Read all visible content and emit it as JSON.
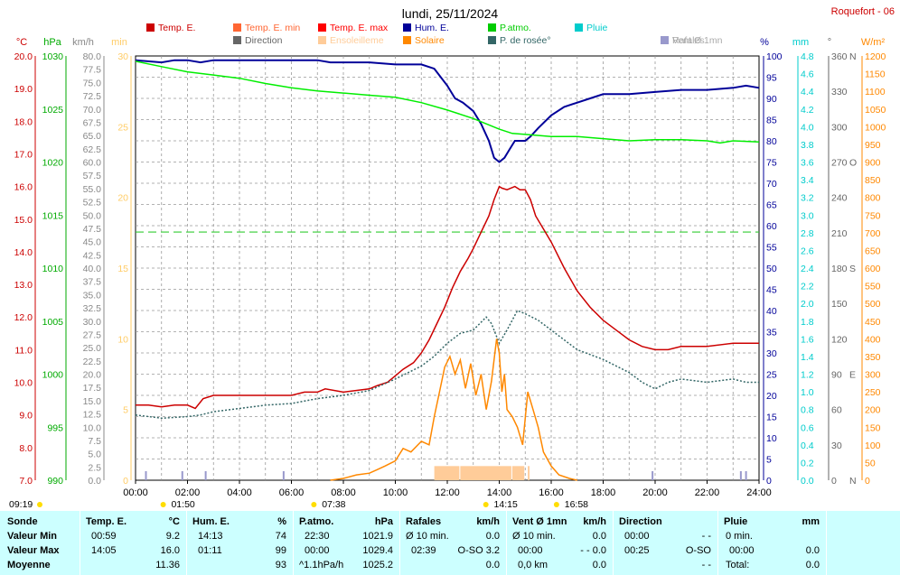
{
  "header": {
    "date": "lundi, 25/11/2024",
    "station": "Roquefort - 06"
  },
  "colors": {
    "temp": "#cc0000",
    "temp_min": "#ff6633",
    "temp_max": "#ff0000",
    "hum": "#000099",
    "patmo": "#00ee00",
    "pluie": "#00cccc",
    "vent": "#999999",
    "direction": "#666666",
    "ensoleillement": "#ffcc99",
    "solaire": "#ff8800",
    "rosee": "#336666",
    "rafales": "#9999cc",
    "grid": "#999999",
    "table_bg": "#ccffff"
  },
  "legend": [
    {
      "label": "Temp. E.",
      "color": "#cc0000"
    },
    {
      "label": "Temp. E. min",
      "color": "#ff6633"
    },
    {
      "label": "Temp. E. max",
      "color": "#ff0000"
    },
    {
      "label": "Hum. E.",
      "color": "#000099"
    },
    {
      "label": "P.atmo.",
      "color": "#00cc00"
    },
    {
      "label": "Pluie",
      "color": "#00cccc"
    },
    {
      "label": "Vent Ø 1mn",
      "color": "#aaaaaa"
    },
    {
      "label": "Direction",
      "color": "#666666"
    },
    {
      "label": "Ensoleilleme",
      "color": "#ffcc99"
    },
    {
      "label": "Solaire",
      "color": "#ff8800"
    },
    {
      "label": "P. de rosée°",
      "color": "#336666"
    },
    {
      "label": "Rafales",
      "color": "#9999cc"
    }
  ],
  "chart_data": {
    "type": "line",
    "x_unit": "hours",
    "x_range": [
      0,
      24
    ],
    "x_ticks": [
      "00:00",
      "02:00",
      "04:00",
      "06:00",
      "08:00",
      "10:00",
      "12:00",
      "14:00",
      "16:00",
      "18:00",
      "20:00",
      "22:00",
      "24:00"
    ],
    "axes": [
      {
        "unit": "°C",
        "color": "#cc0000",
        "range": [
          7,
          20
        ],
        "ticks": [
          "7.0",
          "8.0",
          "9.0",
          "10.0",
          "11.0",
          "12.0",
          "13.0",
          "14.0",
          "15.0",
          "16.0",
          "17.0",
          "18.0",
          "19.0",
          "20.0"
        ]
      },
      {
        "unit": "hPa",
        "color": "#00aa00",
        "range": [
          990,
          1030
        ],
        "ticks": [
          "990",
          "995",
          "1000",
          "1005",
          "1010",
          "1015",
          "1020",
          "1025",
          "1030"
        ]
      },
      {
        "unit": "km/h",
        "color": "#888888",
        "range": [
          0,
          80
        ],
        "ticks": [
          "0.0",
          "2.5",
          "5.0",
          "7.5",
          "10.0",
          "12.5",
          "15.0",
          "17.5",
          "20.0",
          "22.5",
          "25.0",
          "27.5",
          "30.0",
          "32.5",
          "35.0",
          "37.5",
          "40.0",
          "42.5",
          "45.0",
          "47.5",
          "50.0",
          "52.5",
          "55.0",
          "57.5",
          "60.0",
          "62.5",
          "65.0",
          "67.5",
          "70.0",
          "72.5",
          "75.0",
          "77.5",
          "80.0"
        ]
      },
      {
        "unit": "min",
        "color": "#ffcc66",
        "range": [
          0,
          30
        ],
        "ticks": [
          "0",
          "5",
          "10",
          "15",
          "20",
          "25",
          "30"
        ]
      },
      {
        "unit": "%",
        "color": "#000099",
        "range": [
          0,
          100
        ],
        "ticks": [
          "0",
          "5",
          "10",
          "15",
          "20",
          "25",
          "30",
          "35",
          "40",
          "45",
          "50",
          "55",
          "60",
          "65",
          "70",
          "75",
          "80",
          "85",
          "90",
          "95",
          "100"
        ]
      },
      {
        "unit": "mm",
        "color": "#00cccc",
        "range": [
          0,
          4.8
        ],
        "ticks": [
          "0.0",
          "0.2",
          "0.4",
          "0.6",
          "0.8",
          "1.0",
          "1.2",
          "1.4",
          "1.6",
          "1.8",
          "2.0",
          "2.2",
          "2.4",
          "2.6",
          "2.8",
          "3.0",
          "3.2",
          "3.4",
          "3.6",
          "3.8",
          "4.0",
          "4.2",
          "4.4",
          "4.6",
          "4.8"
        ]
      },
      {
        "unit": "°",
        "color": "#666666",
        "range": [
          0,
          360
        ],
        "ticks": [
          "0",
          "30",
          "60",
          "90",
          "120",
          "150",
          "180",
          "210",
          "240",
          "270",
          "300",
          "330",
          "360"
        ],
        "cardinals": [
          {
            "v": 0,
            "t": "N"
          },
          {
            "v": 90,
            "t": "E"
          },
          {
            "v": 180,
            "t": "S"
          },
          {
            "v": 270,
            "t": "O"
          },
          {
            "v": 360,
            "t": "N"
          }
        ]
      },
      {
        "unit": "W/m²",
        "color": "#ff8800",
        "range": [
          0,
          1200
        ],
        "ticks": [
          "0",
          "50",
          "100",
          "150",
          "200",
          "250",
          "300",
          "350",
          "400",
          "450",
          "500",
          "550",
          "600",
          "650",
          "700",
          "750",
          "800",
          "850",
          "900",
          "950",
          "1000",
          "1050",
          "1100",
          "1150",
          "1200"
        ]
      }
    ],
    "series": [
      {
        "name": "Temp. E.",
        "axis": "°C",
        "points": [
          [
            0,
            9.3
          ],
          [
            0.5,
            9.3
          ],
          [
            1,
            9.25
          ],
          [
            1.5,
            9.3
          ],
          [
            2,
            9.3
          ],
          [
            2.3,
            9.2
          ],
          [
            2.6,
            9.5
          ],
          [
            3,
            9.6
          ],
          [
            4,
            9.6
          ],
          [
            5,
            9.6
          ],
          [
            6,
            9.6
          ],
          [
            6.5,
            9.7
          ],
          [
            7,
            9.7
          ],
          [
            7.3,
            9.8
          ],
          [
            8,
            9.7
          ],
          [
            9,
            9.8
          ],
          [
            9.3,
            9.9
          ],
          [
            9.7,
            10.0
          ],
          [
            10,
            10.2
          ],
          [
            10.3,
            10.4
          ],
          [
            10.7,
            10.6
          ],
          [
            11,
            10.9
          ],
          [
            11.3,
            11.3
          ],
          [
            11.6,
            11.8
          ],
          [
            11.9,
            12.3
          ],
          [
            12.2,
            12.9
          ],
          [
            12.5,
            13.4
          ],
          [
            12.8,
            13.8
          ],
          [
            13,
            14.1
          ],
          [
            13.3,
            14.6
          ],
          [
            13.6,
            15.1
          ],
          [
            13.8,
            15.6
          ],
          [
            14,
            16.0
          ],
          [
            14.1,
            15.95
          ],
          [
            14.3,
            15.9
          ],
          [
            14.6,
            16.0
          ],
          [
            14.8,
            15.9
          ],
          [
            15,
            15.9
          ],
          [
            15.2,
            15.6
          ],
          [
            15.4,
            15.1
          ],
          [
            15.7,
            14.7
          ],
          [
            16,
            14.3
          ],
          [
            16.5,
            13.5
          ],
          [
            17,
            12.8
          ],
          [
            17.5,
            12.3
          ],
          [
            18,
            11.9
          ],
          [
            18.5,
            11.6
          ],
          [
            19,
            11.3
          ],
          [
            19.5,
            11.1
          ],
          [
            20,
            11.0
          ],
          [
            20.5,
            11.0
          ],
          [
            21,
            11.1
          ],
          [
            22,
            11.1
          ],
          [
            23,
            11.2
          ],
          [
            24,
            11.2
          ]
        ]
      },
      {
        "name": "P. de rosée°",
        "axis": "°C",
        "dotted": true,
        "points": [
          [
            0,
            9.0
          ],
          [
            1,
            8.9
          ],
          [
            2,
            8.95
          ],
          [
            2.5,
            9.0
          ],
          [
            3,
            9.1
          ],
          [
            4,
            9.2
          ],
          [
            5,
            9.3
          ],
          [
            6,
            9.35
          ],
          [
            7,
            9.5
          ],
          [
            8,
            9.6
          ],
          [
            9,
            9.75
          ],
          [
            10,
            10.1
          ],
          [
            11,
            10.5
          ],
          [
            11.5,
            10.8
          ],
          [
            12,
            11.2
          ],
          [
            12.5,
            11.5
          ],
          [
            13,
            11.6
          ],
          [
            13.5,
            12.0
          ],
          [
            13.7,
            11.8
          ],
          [
            14,
            11.2
          ],
          [
            14.3,
            11.6
          ],
          [
            14.7,
            12.2
          ],
          [
            15,
            12.1
          ],
          [
            15.5,
            11.9
          ],
          [
            16,
            11.6
          ],
          [
            17,
            11.0
          ],
          [
            18,
            10.7
          ],
          [
            19,
            10.3
          ],
          [
            19.5,
            10.0
          ],
          [
            20,
            9.8
          ],
          [
            20.5,
            10.0
          ],
          [
            21,
            10.1
          ],
          [
            22,
            10.0
          ],
          [
            23,
            10.1
          ],
          [
            23.5,
            10.0
          ],
          [
            24,
            10.0
          ]
        ]
      },
      {
        "name": "Hum. E.",
        "axis": "%",
        "points": [
          [
            0,
            99
          ],
          [
            1,
            98.5
          ],
          [
            1.5,
            99
          ],
          [
            2,
            99
          ],
          [
            2.5,
            98.5
          ],
          [
            3,
            99
          ],
          [
            5,
            99
          ],
          [
            7,
            99
          ],
          [
            7.5,
            98.5
          ],
          [
            9,
            98.5
          ],
          [
            10,
            98
          ],
          [
            11,
            98
          ],
          [
            11.5,
            97
          ],
          [
            12,
            93
          ],
          [
            12.3,
            90
          ],
          [
            12.6,
            89
          ],
          [
            13,
            87
          ],
          [
            13.3,
            84
          ],
          [
            13.6,
            80
          ],
          [
            13.8,
            76
          ],
          [
            14,
            75
          ],
          [
            14.2,
            76
          ],
          [
            14.4,
            78
          ],
          [
            14.6,
            80
          ],
          [
            14.8,
            80
          ],
          [
            15,
            80
          ],
          [
            15.2,
            81
          ],
          [
            15.5,
            83
          ],
          [
            16,
            86
          ],
          [
            16.5,
            88
          ],
          [
            17,
            89
          ],
          [
            17.5,
            90
          ],
          [
            18,
            91
          ],
          [
            19,
            91
          ],
          [
            20,
            91.5
          ],
          [
            21,
            92
          ],
          [
            22,
            92
          ],
          [
            23,
            92.5
          ],
          [
            23.5,
            93
          ],
          [
            24,
            92.5
          ]
        ]
      },
      {
        "name": "P.atmo.",
        "axis": "hPa",
        "points": [
          [
            0,
            1029.5
          ],
          [
            1,
            1029.0
          ],
          [
            2,
            1028.5
          ],
          [
            3,
            1028.2
          ],
          [
            4,
            1027.9
          ],
          [
            5,
            1027.4
          ],
          [
            6,
            1027.0
          ],
          [
            7,
            1026.7
          ],
          [
            8,
            1026.5
          ],
          [
            9,
            1026.3
          ],
          [
            10,
            1026.1
          ],
          [
            11,
            1025.6
          ],
          [
            12,
            1024.9
          ],
          [
            13,
            1024.1
          ],
          [
            13.5,
            1023.6
          ],
          [
            14,
            1023.1
          ],
          [
            14.5,
            1022.7
          ],
          [
            15,
            1022.6
          ],
          [
            16,
            1022.4
          ],
          [
            17,
            1022.4
          ],
          [
            18,
            1022.2
          ],
          [
            19,
            1022.0
          ],
          [
            20,
            1022.1
          ],
          [
            21,
            1022.1
          ],
          [
            22,
            1022.0
          ],
          [
            22.5,
            1021.8
          ],
          [
            23,
            1022.0
          ],
          [
            24,
            1021.9
          ]
        ]
      },
      {
        "name": "Solaire",
        "axis": "W/m²",
        "points": [
          [
            7.5,
            0
          ],
          [
            8,
            5
          ],
          [
            8.5,
            15
          ],
          [
            9,
            20
          ],
          [
            9.3,
            30
          ],
          [
            9.6,
            40
          ],
          [
            10,
            55
          ],
          [
            10.3,
            90
          ],
          [
            10.6,
            80
          ],
          [
            11,
            110
          ],
          [
            11.3,
            100
          ],
          [
            11.5,
            180
          ],
          [
            11.7,
            250
          ],
          [
            11.9,
            320
          ],
          [
            12.1,
            350
          ],
          [
            12.3,
            300
          ],
          [
            12.5,
            340
          ],
          [
            12.7,
            260
          ],
          [
            12.9,
            330
          ],
          [
            13.1,
            240
          ],
          [
            13.3,
            300
          ],
          [
            13.5,
            200
          ],
          [
            13.7,
            280
          ],
          [
            13.9,
            400
          ],
          [
            14.0,
            360
          ],
          [
            14.1,
            250
          ],
          [
            14.2,
            300
          ],
          [
            14.3,
            200
          ],
          [
            14.5,
            180
          ],
          [
            14.7,
            150
          ],
          [
            14.9,
            100
          ],
          [
            15.1,
            250
          ],
          [
            15.3,
            200
          ],
          [
            15.5,
            150
          ],
          [
            15.7,
            80
          ],
          [
            16,
            40
          ],
          [
            16.3,
            15
          ],
          [
            16.7,
            5
          ],
          [
            17,
            0
          ]
        ]
      }
    ],
    "sunshine_bars": [
      [
        11.5,
        12.5
      ],
      [
        12.5,
        14.5
      ],
      [
        14.5,
        15.0
      ],
      [
        15.1,
        15.2
      ]
    ],
    "gust_spikes": [
      0.4,
      1.8,
      2.7,
      5.7,
      19.9,
      23.3,
      23.5
    ],
    "reference_line": {
      "axis": "%",
      "value": 58.5,
      "color": "#33cc33",
      "dashed": true
    },
    "time_labels": [
      {
        "t": "09:19",
        "x": 0.0
      },
      {
        "t": "01:50",
        "x": 1.83
      },
      {
        "t": "07:38",
        "x": 7.63
      },
      {
        "t": "14:15",
        "x": 14.25
      },
      {
        "t": "16:58",
        "x": 16.97
      }
    ]
  },
  "table": {
    "col_sonde": {
      "h": "Sonde",
      "r1": "Valeur Min",
      "r2": "Valeur Max",
      "r3": "Moyenne"
    },
    "col_temp": {
      "h": "Temp. E.",
      "u": "°C",
      "r1a": "00:59",
      "r1b": "9.2",
      "r2a": "14:05",
      "r2b": "16.0",
      "r3b": "11.36"
    },
    "col_hum": {
      "h": "Hum. E.",
      "u": "%",
      "r1a": "14:13",
      "r1b": "74",
      "r2a": "01:11",
      "r2b": "99",
      "r3b": "93"
    },
    "col_patmo": {
      "h": "P.atmo.",
      "u": "hPa",
      "r1a": "22:30",
      "r1b": "1021.9",
      "r2a": "00:00",
      "r2b": "1029.4",
      "r3a": "^1.1hPa/h",
      "r3b": "1025.2"
    },
    "col_raf": {
      "h": "Rafales",
      "u": "km/h",
      "r1a": "Ø 10 min.",
      "r1b": "0.0",
      "r2a": "02:39",
      "r2b": "O-SO 3.2",
      "r3b": "0.0"
    },
    "col_vent": {
      "h": "Vent Ø 1mn",
      "u": "km/h",
      "r1a": "Ø 10 min.",
      "r1b": "0.0",
      "r2a": "00:00",
      "r2b": "- - 0.0",
      "r3a": "0,0 km",
      "r3b": "0.0"
    },
    "col_dir": {
      "h": "Direction",
      "r1a": "00:00",
      "r1b": "- -",
      "r2a": "00:25",
      "r2b": "O-SO",
      "r3b": "- -"
    },
    "col_pluie": {
      "h": "Pluie",
      "u": "mm",
      "r1a": "0 min.",
      "r2a": "00:00",
      "r2b": "0.0",
      "r3a": "Total:",
      "r3b": "0.0"
    }
  }
}
